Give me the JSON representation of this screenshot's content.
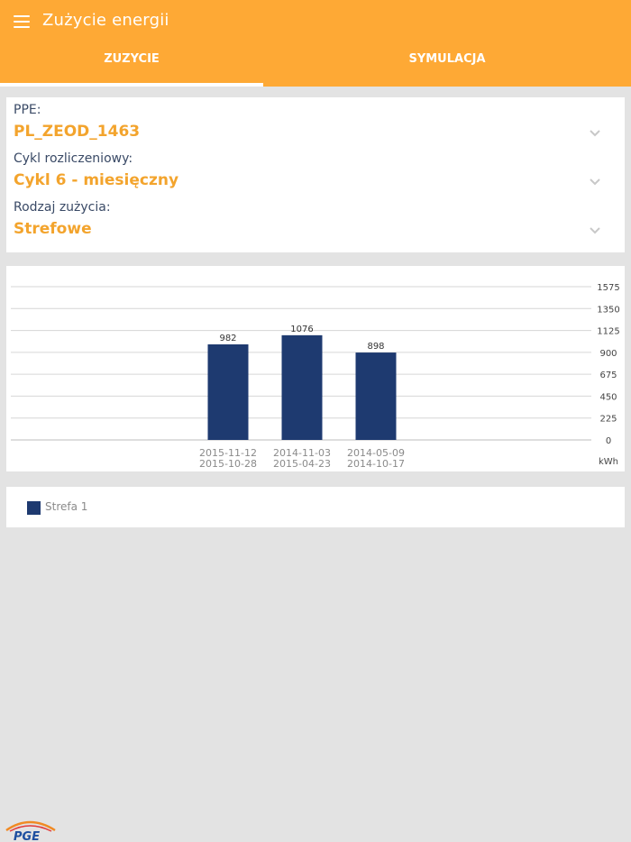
{
  "app": {
    "title": "Zużycie energii"
  },
  "tabs": [
    {
      "label": "ZUZYCIE",
      "active": true
    },
    {
      "label": "SYMULACJA",
      "active": false
    }
  ],
  "form": {
    "ppe": {
      "label": "PPE:",
      "value": "PL_ZEOD_1463"
    },
    "cycle": {
      "label": "Cykl rozliczeniowy:",
      "value": "Cykl 6 - miesięczny"
    },
    "usage_type": {
      "label": "Rodzaj zużycia:",
      "value": "Strefowe"
    }
  },
  "chart_data": {
    "type": "bar",
    "categories": [
      [
        "2015-11-12",
        "2015-10-28"
      ],
      [
        "2014-11-03",
        "2015-04-23"
      ],
      [
        "2014-05-09",
        "2014-10-17"
      ]
    ],
    "series": [
      {
        "name": "Strefa 1",
        "values": [
          982,
          1076,
          898
        ],
        "color": "#1e3a70"
      }
    ],
    "data_labels": [
      "982",
      "1076",
      "898"
    ],
    "y_ticks": [
      0,
      225,
      450,
      675,
      900,
      1125,
      1350,
      1575
    ],
    "ylim": [
      0,
      1575
    ],
    "yunit": "kWh",
    "y_axis_position": "right",
    "grid": true
  },
  "legend": {
    "items": [
      {
        "label": "Strefa 1",
        "color": "#1e3a70"
      }
    ]
  },
  "logo": {
    "text": "PGE"
  }
}
